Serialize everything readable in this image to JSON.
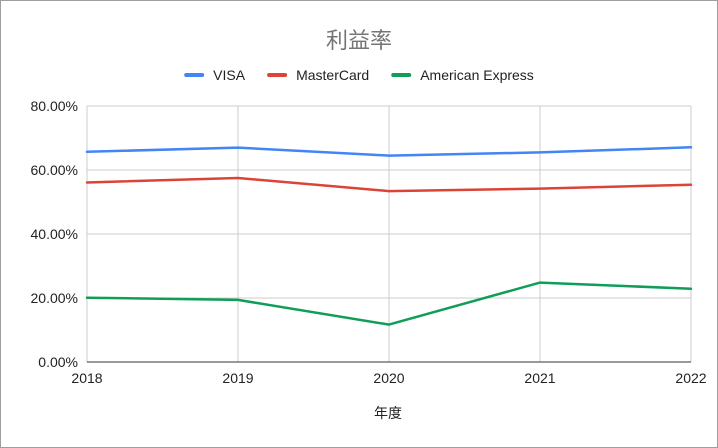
{
  "chart_data": {
    "type": "line",
    "title": "利益率",
    "xlabel": "年度",
    "ylabel": "",
    "categories": [
      "2018",
      "2019",
      "2020",
      "2021",
      "2022"
    ],
    "ylim": [
      0,
      0.8
    ],
    "yticks": [
      "0.00%",
      "20.00%",
      "40.00%",
      "60.00%",
      "80.00%"
    ],
    "legend_position": "top",
    "grid": true,
    "series": [
      {
        "name": "VISA",
        "color": "#4285f4",
        "values": [
          0.657,
          0.67,
          0.645,
          0.655,
          0.671
        ]
      },
      {
        "name": "MasterCard",
        "color": "#db4437",
        "values": [
          0.561,
          0.575,
          0.534,
          0.542,
          0.554
        ]
      },
      {
        "name": "American Express",
        "color": "#0f9d58",
        "values": [
          0.201,
          0.194,
          0.117,
          0.248,
          0.229
        ]
      }
    ]
  }
}
